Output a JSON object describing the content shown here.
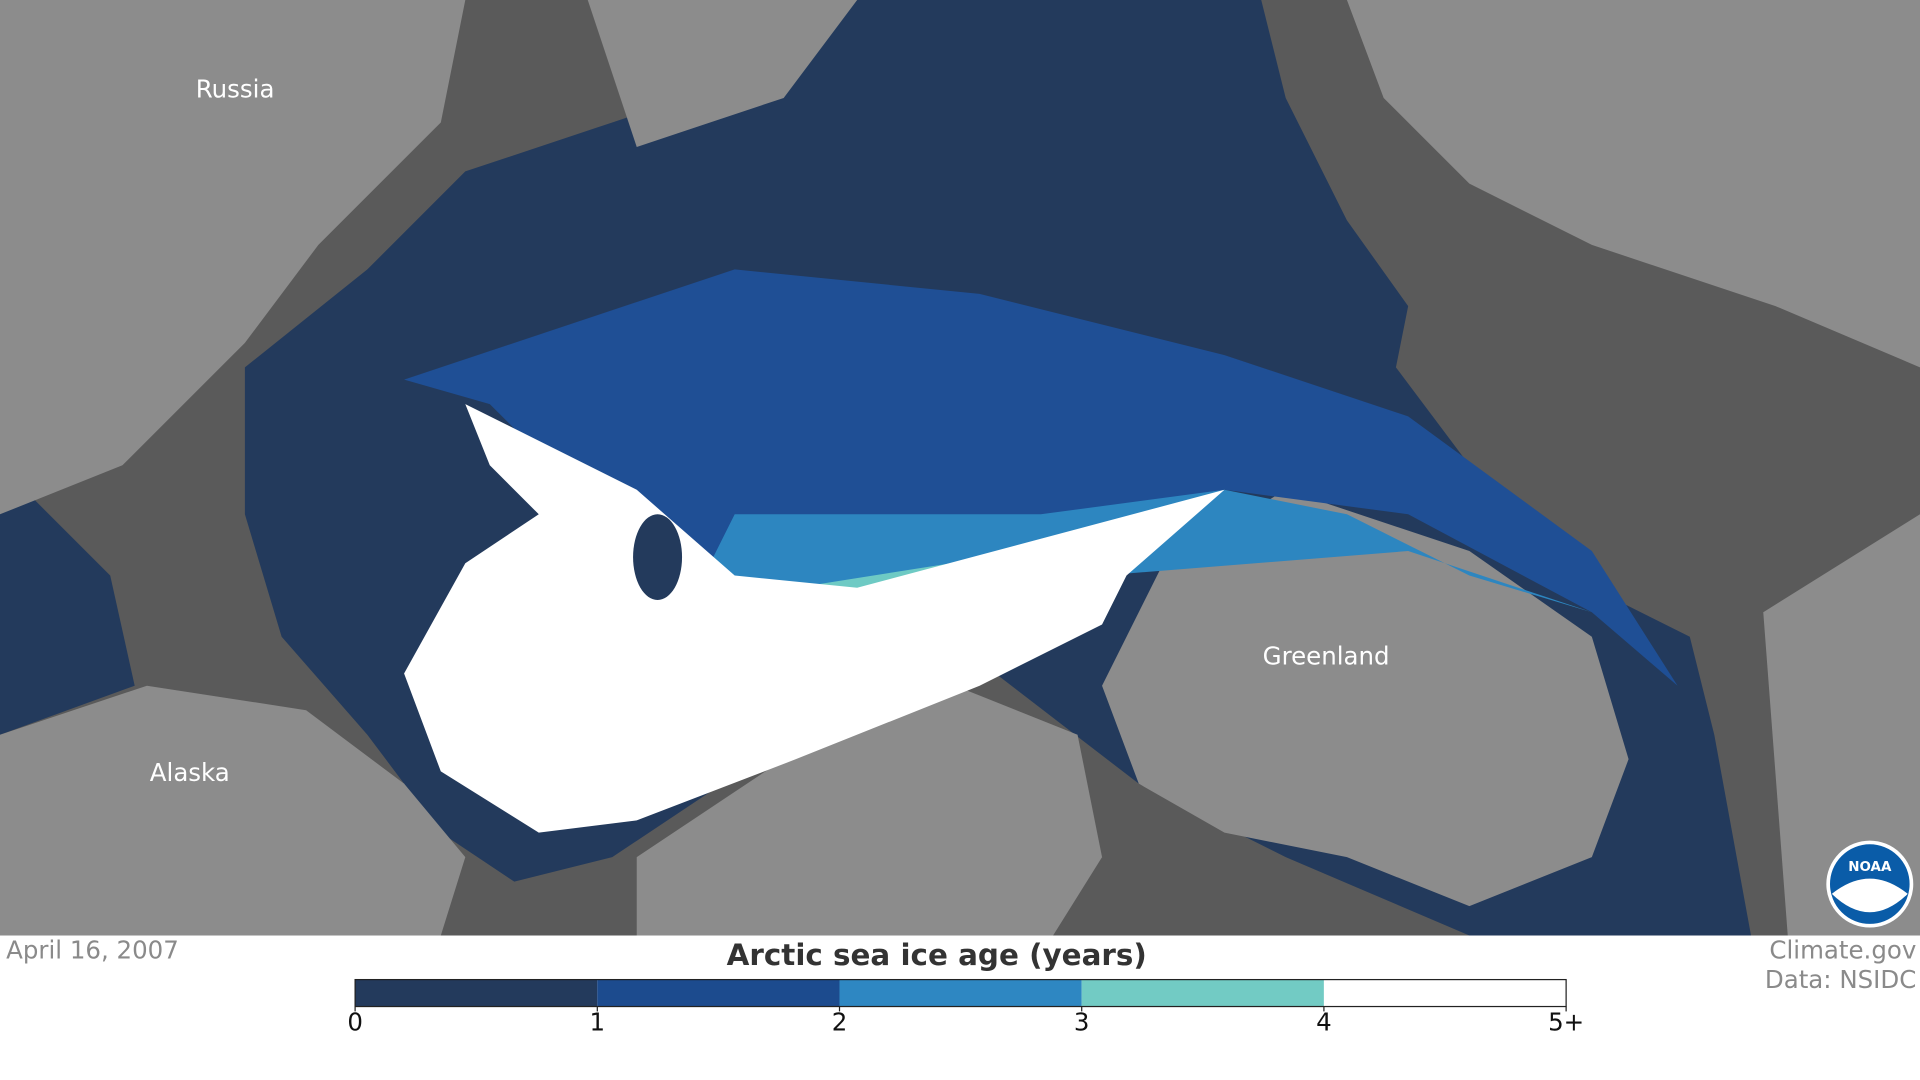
{
  "map": {
    "labels": [
      "Russia",
      "Alaska",
      "Greenland"
    ],
    "logo": "NOAA"
  },
  "date": "April 16, 2007",
  "credits": [
    "Climate.gov",
    "Data: NSIDC"
  ],
  "legend": {
    "title": "Arctic sea ice age (years)",
    "colors": [
      "#233a5c",
      "#1c4b8e",
      "#2e87c2",
      "#72cbc4",
      "#ffffff"
    ],
    "lim": [
      0,
      5
    ],
    "ticks": [
      0,
      1,
      2,
      3,
      4,
      {
        "value": 5,
        "label": "5+"
      }
    ]
  }
}
